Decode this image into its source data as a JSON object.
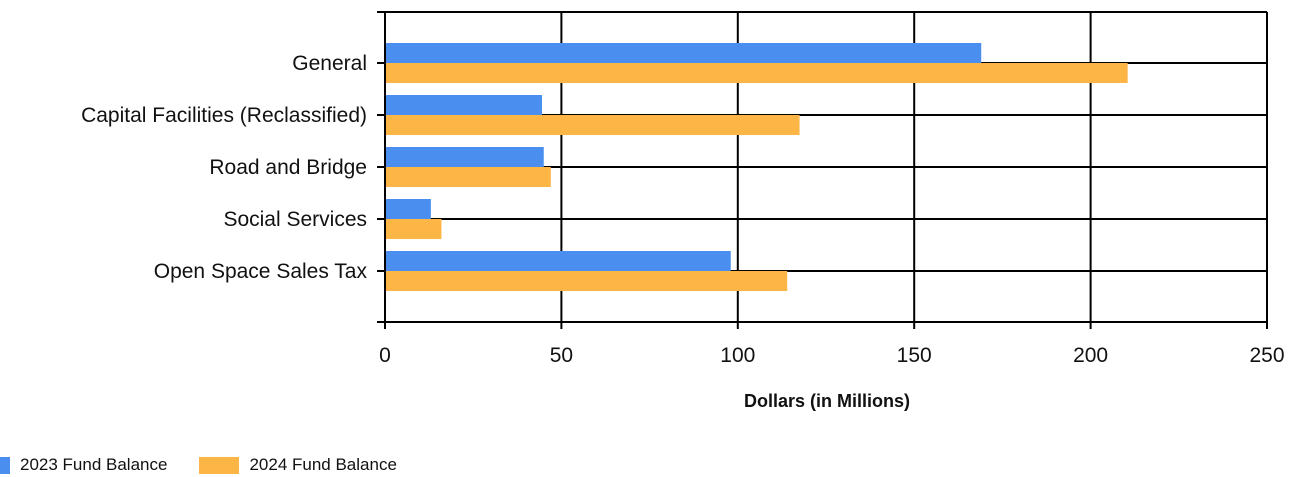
{
  "chart_data": {
    "type": "bar",
    "orientation": "horizontal",
    "categories": [
      "General",
      "Capital Facilities (Reclassified)",
      "Road and Bridge",
      "Social Services",
      "Open Space Sales Tax"
    ],
    "series": [
      {
        "name": "2023 Fund Balance",
        "color": "#4a8ff0",
        "values": [
          169,
          44.5,
          45,
          13,
          98
        ]
      },
      {
        "name": "2024 Fund Balance",
        "color": "#fdb545",
        "values": [
          210.5,
          117.5,
          47,
          16,
          114
        ]
      }
    ],
    "xlabel": "Dollars (in Millions)",
    "ylabel": "",
    "xlim": [
      0,
      250
    ],
    "xticks": [
      0,
      50,
      100,
      150,
      200,
      250
    ],
    "grid": true,
    "legend_position": "bottom-left"
  }
}
